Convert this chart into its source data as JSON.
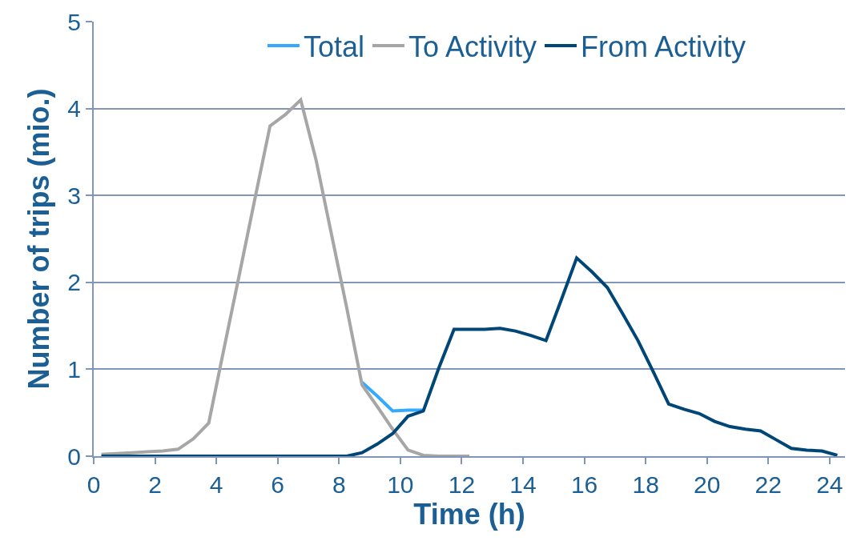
{
  "chart_data": {
    "type": "line",
    "xlabel": "Time (h)",
    "ylabel": "Number of trips (mio.)",
    "x": [
      0.25,
      0.75,
      1.25,
      1.75,
      2.25,
      2.75,
      3.25,
      3.75,
      4.25,
      4.75,
      5.25,
      5.75,
      6.25,
      6.75,
      7.25,
      7.75,
      8.25,
      8.75,
      9.25,
      9.75,
      10.25,
      10.75,
      11.25,
      11.75,
      12.25,
      12.75,
      13.25,
      13.75,
      14.25,
      14.75,
      15.25,
      15.75,
      16.25,
      16.75,
      17.25,
      17.75,
      18.25,
      18.75,
      19.25,
      19.75,
      20.25,
      20.75,
      21.25,
      21.75,
      22.25,
      22.75,
      23.25,
      23.75,
      24.25
    ],
    "series": [
      {
        "name": "Total",
        "color": "#33aaff",
        "values": [
          null,
          null,
          null,
          null,
          null,
          null,
          null,
          null,
          null,
          null,
          null,
          null,
          null,
          null,
          null,
          null,
          null,
          0.85,
          0.69,
          0.52,
          0.53,
          0.53,
          null,
          null,
          null,
          null,
          null,
          null,
          null,
          null,
          null,
          null,
          null,
          null,
          null,
          null,
          null,
          null,
          null,
          null,
          null,
          null,
          null,
          null,
          null,
          null,
          null,
          null,
          null
        ]
      },
      {
        "name": "To Activity",
        "color": "#a6a6a6",
        "values": [
          0.02,
          0.03,
          0.04,
          0.05,
          0.06,
          0.08,
          0.2,
          0.38,
          1.24,
          2.09,
          2.95,
          3.8,
          3.93,
          4.1,
          3.41,
          2.56,
          1.71,
          0.82,
          0.57,
          0.31,
          0.07,
          0.01,
          0,
          0,
          0,
          null,
          null,
          null,
          null,
          null,
          null,
          null,
          null,
          null,
          null,
          null,
          null,
          null,
          null,
          null,
          null,
          null,
          null,
          null,
          null,
          null,
          null,
          null,
          null
        ]
      },
      {
        "name": "From Activity",
        "color": "#004677",
        "values": [
          0,
          0,
          0,
          0,
          0,
          0,
          0,
          0,
          0,
          0,
          0,
          0,
          0,
          0,
          0,
          0,
          0,
          0.04,
          0.14,
          0.26,
          0.46,
          0.52,
          1.01,
          1.46,
          1.46,
          1.46,
          1.47,
          1.44,
          1.39,
          1.33,
          1.8,
          2.28,
          2.12,
          1.94,
          1.64,
          1.33,
          0.97,
          0.6,
          0.54,
          0.49,
          0.4,
          0.34,
          0.31,
          0.29,
          0.19,
          0.09,
          0.07,
          0.06,
          0.01
        ]
      }
    ],
    "xlim": [
      0,
      24.5
    ],
    "xticks": [
      0,
      2,
      4,
      6,
      8,
      10,
      12,
      14,
      16,
      18,
      20,
      22,
      24
    ],
    "ylim": [
      0,
      5
    ],
    "yticks": [
      0,
      1,
      2,
      3,
      4,
      5
    ],
    "grid": "y",
    "legend": "top",
    "marker": "none",
    "line_style": "solid"
  }
}
